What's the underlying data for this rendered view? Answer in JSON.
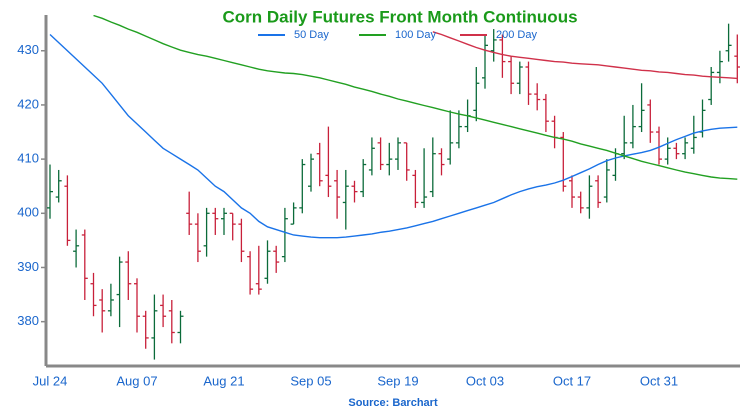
{
  "chart_data": {
    "type": "ohlc",
    "title": "Corn Daily Futures Front Month Continuous",
    "source": "Source: Barchart",
    "categories": [
      "Jul 24",
      null,
      null,
      null,
      null,
      null,
      null,
      null,
      null,
      null,
      "Aug 07",
      null,
      null,
      null,
      null,
      null,
      null,
      null,
      null,
      null,
      "Aug 21",
      null,
      null,
      null,
      null,
      null,
      null,
      null,
      null,
      null,
      "Sep 05",
      null,
      null,
      null,
      null,
      null,
      null,
      null,
      null,
      null,
      "Sep 19",
      null,
      null,
      null,
      null,
      null,
      null,
      null,
      null,
      null,
      "Oct 03",
      null,
      null,
      null,
      null,
      null,
      null,
      null,
      null,
      null,
      "Oct 17",
      null,
      null,
      null,
      null,
      null,
      null,
      null,
      null,
      null,
      "Oct 31",
      null,
      null,
      null,
      null,
      null,
      null,
      null,
      null,
      null
    ],
    "ohlc": {
      "open": [
        401,
        403,
        405,
        393,
        396,
        387,
        384,
        382,
        385,
        391,
        387,
        381,
        377,
        383,
        382,
        378,
        400,
        398,
        394,
        400,
        399,
        400,
        398,
        392,
        387,
        388,
        393,
        392,
        398,
        401,
        405,
        411,
        407,
        406,
        402,
        405,
        404,
        408,
        413,
        409,
        410,
        413,
        407,
        402,
        404,
        411,
        410,
        413,
        416,
        419,
        425,
        430,
        432,
        428,
        424,
        427,
        422,
        421,
        417,
        414,
        406,
        403,
        401,
        406,
        403,
        407,
        411,
        413,
        416,
        420,
        415,
        410,
        412,
        411,
        412,
        415,
        421,
        426,
        430,
        429
      ],
      "high": [
        409,
        408,
        407,
        397,
        397,
        389,
        386,
        387,
        392,
        393,
        388,
        382,
        385,
        385,
        384,
        382,
        404,
        400,
        401,
        401,
        401,
        400,
        399,
        393,
        394,
        395,
        394,
        401,
        402,
        410,
        411,
        413,
        416,
        408,
        408,
        406,
        410,
        414,
        414,
        413,
        414,
        413,
        408,
        412,
        414,
        412,
        419,
        419,
        421,
        427,
        433,
        434,
        433,
        429,
        428,
        428,
        424,
        422,
        418,
        415,
        407,
        404,
        407,
        407,
        410,
        412,
        418,
        420,
        424,
        421,
        416,
        414,
        413,
        414,
        418,
        421,
        427,
        430,
        435,
        433
      ],
      "low": [
        399,
        402,
        394,
        390,
        384,
        381,
        378,
        381,
        379,
        384,
        378,
        375,
        373,
        379,
        376,
        376,
        396,
        391,
        392,
        396,
        396,
        395,
        391,
        385,
        385,
        387,
        389,
        391,
        398,
        400,
        404,
        405,
        403,
        399,
        397,
        402,
        403,
        407,
        408,
        407,
        408,
        406,
        401,
        401,
        403,
        407,
        409,
        412,
        415,
        417,
        423,
        428,
        425,
        422,
        422,
        420,
        419,
        415,
        412,
        404,
        401,
        400,
        399,
        401,
        402,
        406,
        410,
        412,
        415,
        413,
        409,
        409,
        410,
        410,
        411,
        414,
        420,
        424,
        428,
        424
      ],
      "close": [
        404,
        406,
        395,
        394,
        388,
        383,
        382,
        384,
        391,
        387,
        381,
        377,
        382,
        381,
        378,
        381,
        398,
        393,
        400,
        399,
        400,
        398,
        393,
        386,
        386,
        393,
        391,
        399,
        401,
        409,
        410,
        406,
        405,
        403,
        405,
        404,
        409,
        412,
        409,
        410,
        413,
        408,
        402,
        403,
        411,
        409,
        413,
        416,
        418,
        424,
        431,
        432,
        428,
        424,
        427,
        422,
        421,
        417,
        414,
        405,
        403,
        401,
        405,
        402,
        408,
        411,
        413,
        416,
        419,
        415,
        410,
        412,
        411,
        413,
        414,
        419,
        426,
        428,
        431,
        427
      ],
      "up_color": "#0b6b3a",
      "down_color": "#c8203a"
    },
    "lines": [
      {
        "name": "50 Day",
        "color": "#1a73e8",
        "values": [
          433,
          431.5,
          430,
          428.5,
          427,
          425.5,
          424,
          422,
          420,
          418,
          416.5,
          415,
          413.5,
          412,
          411,
          410,
          409,
          408,
          406.5,
          405,
          404,
          402.5,
          401,
          400,
          398.5,
          397.5,
          397,
          396.5,
          396,
          395.8,
          395.6,
          395.5,
          395.5,
          395.5,
          395.6,
          395.8,
          396,
          396.2,
          396.5,
          396.7,
          397,
          397.3,
          397.7,
          398.1,
          398.5,
          399,
          399.5,
          400,
          400.5,
          401,
          401.5,
          402,
          402.7,
          403.4,
          404,
          404.5,
          404.9,
          405.2,
          405.6,
          406.1,
          406.8,
          407.5,
          408.2,
          409,
          409.7,
          410.2,
          410.6,
          410.9,
          411.2,
          411.6,
          412.2,
          412.9,
          413.6,
          414.2,
          414.8,
          415.2,
          415.5,
          415.7,
          415.8,
          415.9
        ]
      },
      {
        "name": "100 Day",
        "color": "#22a022",
        "values": [
          null,
          null,
          null,
          null,
          null,
          436.5,
          436,
          435.3,
          434.7,
          434,
          433.4,
          432.7,
          432,
          431.3,
          430.7,
          430.1,
          429.7,
          429.3,
          429,
          428.6,
          428.2,
          427.8,
          427.4,
          427,
          426.6,
          426.3,
          426.1,
          425.9,
          425.8,
          425.6,
          425.3,
          425,
          424.6,
          424.2,
          423.8,
          423.3,
          422.9,
          422.5,
          422,
          421.6,
          421.1,
          420.7,
          420.3,
          419.9,
          419.5,
          419.1,
          418.7,
          418.3,
          418,
          417.6,
          417.2,
          416.8,
          416.4,
          416,
          415.6,
          415.2,
          414.8,
          414.4,
          414,
          413.7,
          413.3,
          412.8,
          412.4,
          412,
          411.6,
          411.1,
          410.6,
          410.1,
          409.6,
          409.2,
          408.8,
          408.4,
          408,
          407.6,
          407.3,
          407,
          406.7,
          406.5,
          406.4,
          406.3
        ]
      },
      {
        "name": "200 Day",
        "color": "#d0314a",
        "values": [
          null,
          null,
          null,
          null,
          null,
          null,
          null,
          null,
          null,
          null,
          null,
          null,
          null,
          null,
          null,
          null,
          null,
          null,
          null,
          null,
          null,
          null,
          null,
          null,
          null,
          null,
          null,
          null,
          null,
          null,
          null,
          null,
          null,
          null,
          null,
          null,
          null,
          null,
          null,
          null,
          null,
          null,
          null,
          null,
          433.5,
          433,
          432.4,
          431.8,
          431.2,
          430.6,
          430.1,
          429.7,
          429.3,
          429,
          428.8,
          428.6,
          428.4,
          428.2,
          428,
          427.9,
          427.7,
          427.6,
          427.5,
          427.4,
          427.2,
          427,
          426.8,
          426.6,
          426.4,
          426.3,
          426.1,
          426,
          425.8,
          425.6,
          425.5,
          425.3,
          425.2,
          425.1,
          425,
          424.9
        ]
      }
    ],
    "ylim": [
      372,
      436.6
    ],
    "yticks": [
      380,
      390,
      400,
      410,
      420,
      430
    ],
    "grid": false
  }
}
